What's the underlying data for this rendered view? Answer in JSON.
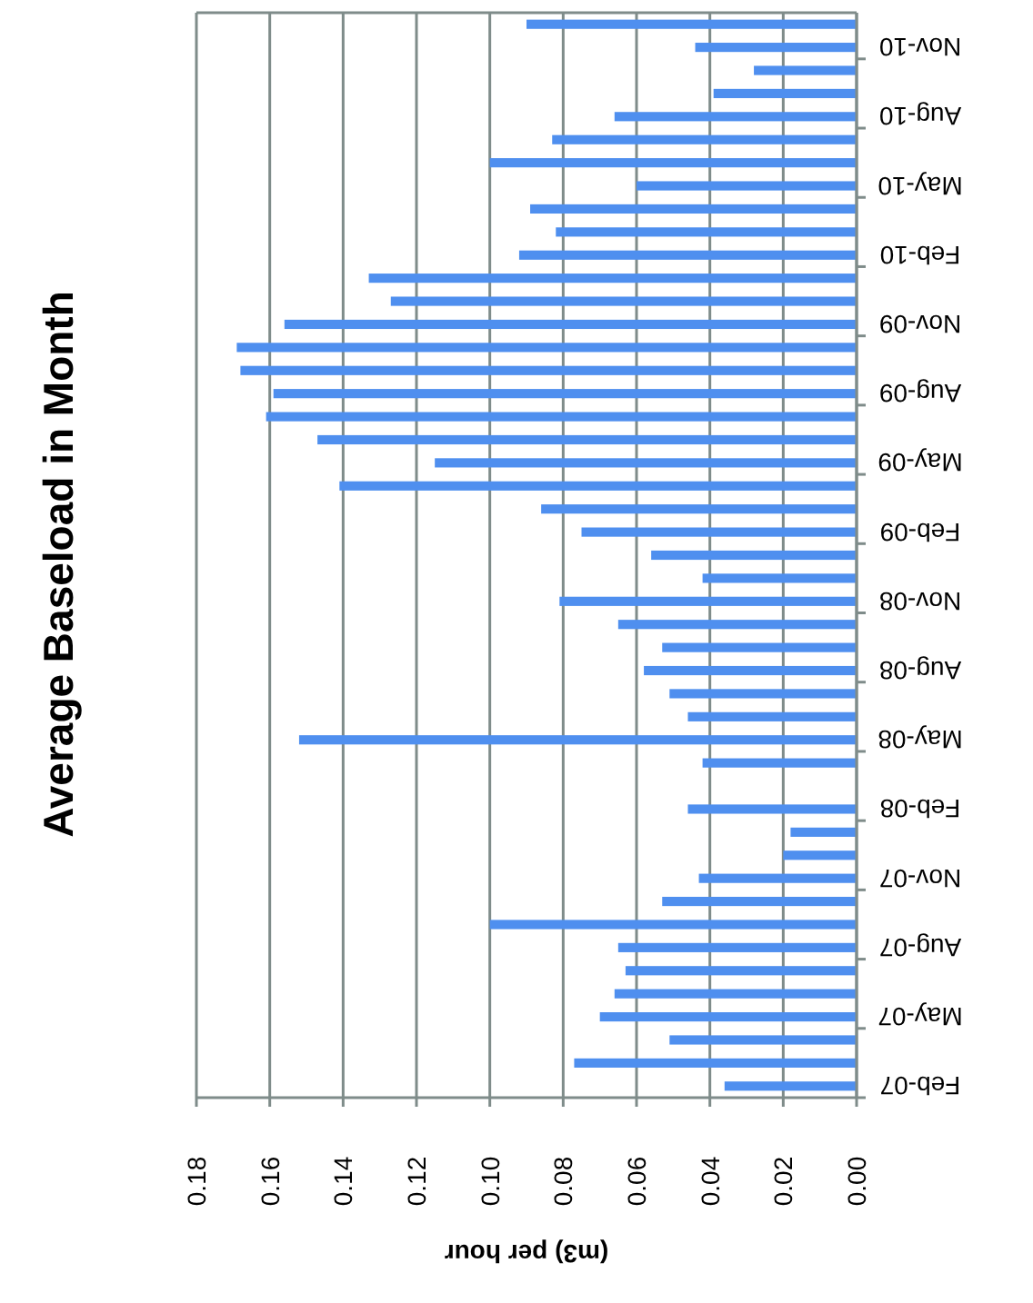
{
  "chart_data": {
    "type": "bar",
    "orientation": "horizontal",
    "title": "Average Baseload in Month",
    "xlabel": "(m3) per hour",
    "categories": [
      null,
      "Nov-10",
      null,
      null,
      "Aug-10",
      null,
      null,
      "May-10",
      null,
      null,
      "Feb-10",
      null,
      null,
      "Nov-09",
      null,
      null,
      "Aug-09",
      null,
      null,
      "May-09",
      null,
      null,
      "Feb-09",
      null,
      null,
      "Nov-08",
      null,
      null,
      "Aug-08",
      null,
      null,
      "May-08",
      null,
      null,
      "Feb-08",
      null,
      null,
      "Nov-07",
      null,
      null,
      "Aug-07",
      null,
      null,
      "May-07",
      null,
      null,
      "Feb-07"
    ],
    "values": [
      0.09,
      0.044,
      0.028,
      0.039,
      0.066,
      0.083,
      0.1,
      0.06,
      0.089,
      0.082,
      0.092,
      0.133,
      0.127,
      0.156,
      0.169,
      0.168,
      0.159,
      0.161,
      0.147,
      0.115,
      0.141,
      0.086,
      0.075,
      0.056,
      0.042,
      0.081,
      0.065,
      0.053,
      0.058,
      0.051,
      0.046,
      0.152,
      0.042,
      null,
      0.046,
      0.018,
      0.02,
      0.043,
      0.053,
      0.1,
      0.065,
      0.063,
      0.066,
      0.07,
      0.051,
      0.077,
      0.036
    ],
    "color": "#4f8fef",
    "xlim": [
      0.18,
      0
    ],
    "xticks": [
      {
        "value": 0.18,
        "label": "0.18"
      },
      {
        "value": 0.16,
        "label": "0.16"
      },
      {
        "value": 0.14,
        "label": "0.14"
      },
      {
        "value": 0.12,
        "label": "0.12"
      },
      {
        "value": 0.1,
        "label": "0.10"
      },
      {
        "value": 0.08,
        "label": "0.08"
      },
      {
        "value": 0.06,
        "label": "0.06"
      },
      {
        "value": 0.04,
        "label": "0.04"
      },
      {
        "value": 0.02,
        "label": "0.02"
      },
      {
        "value": 0,
        "label": "0.00"
      }
    ],
    "grid": "x"
  }
}
